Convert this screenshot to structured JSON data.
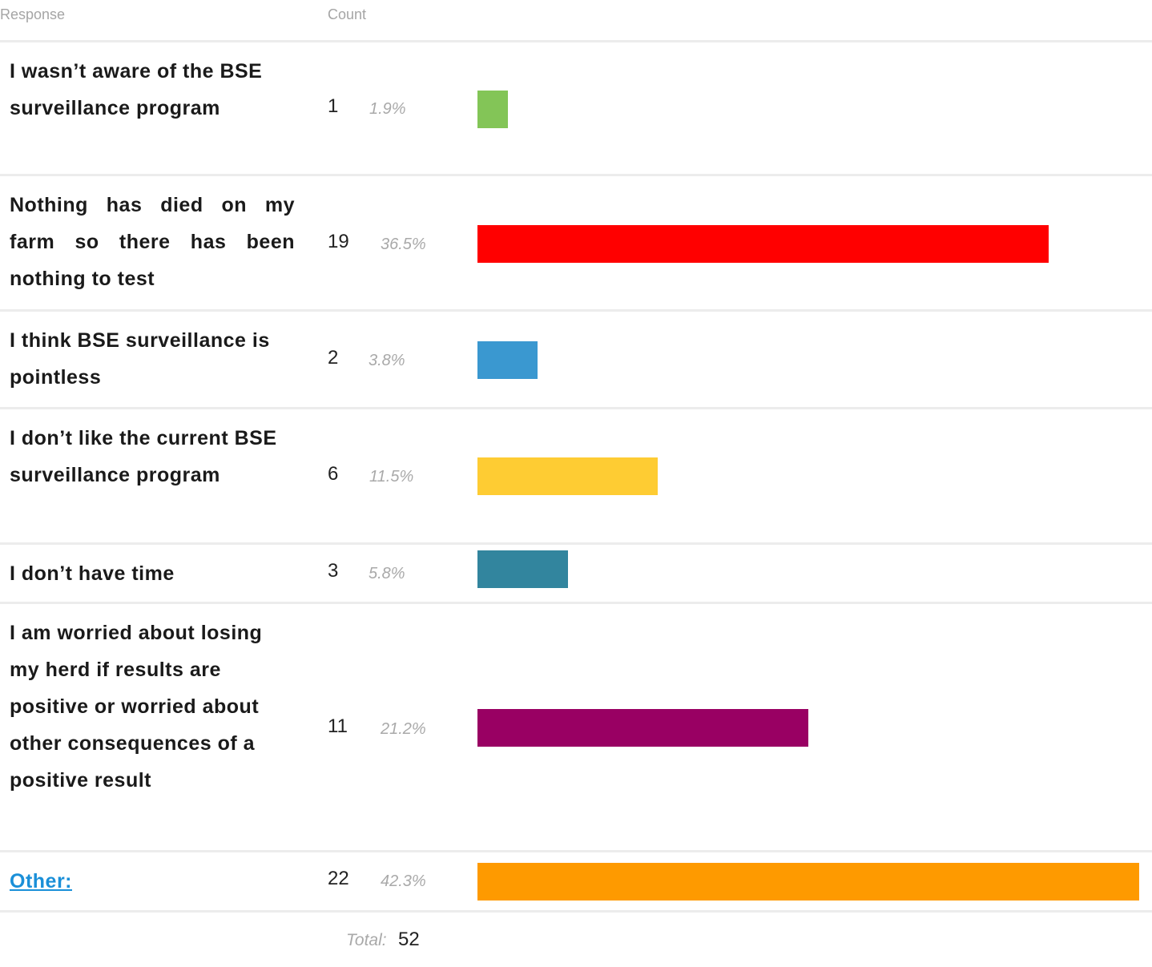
{
  "header": {
    "response_label": "Response",
    "count_label": "Count"
  },
  "chart_data": {
    "type": "bar",
    "orientation": "horizontal",
    "categories": [
      "I wasn’t aware of the BSE surveillance program",
      "Nothing has died on my farm so there has been nothing to test",
      "I think BSE surveillance is pointless",
      "I don’t like the current BSE surveillance program",
      "I don’t have time",
      "I am worried about losing my herd if results are positive or worried about other consequences of a positive result",
      "Other:"
    ],
    "values": [
      1,
      19,
      2,
      6,
      3,
      11,
      22
    ],
    "percent_labels": [
      "1.9%",
      "36.5%",
      "3.8%",
      "11.5%",
      "5.8%",
      "21.2%",
      "42.3%"
    ],
    "colors": [
      "#83c557",
      "#ff0000",
      "#3a98d0",
      "#fecc33",
      "#32859e",
      "#990063",
      "#fe9a00"
    ],
    "max_value": 22,
    "legend": "none",
    "grid": false
  },
  "footer": {
    "total_label": "Total:",
    "total_value": "52"
  }
}
